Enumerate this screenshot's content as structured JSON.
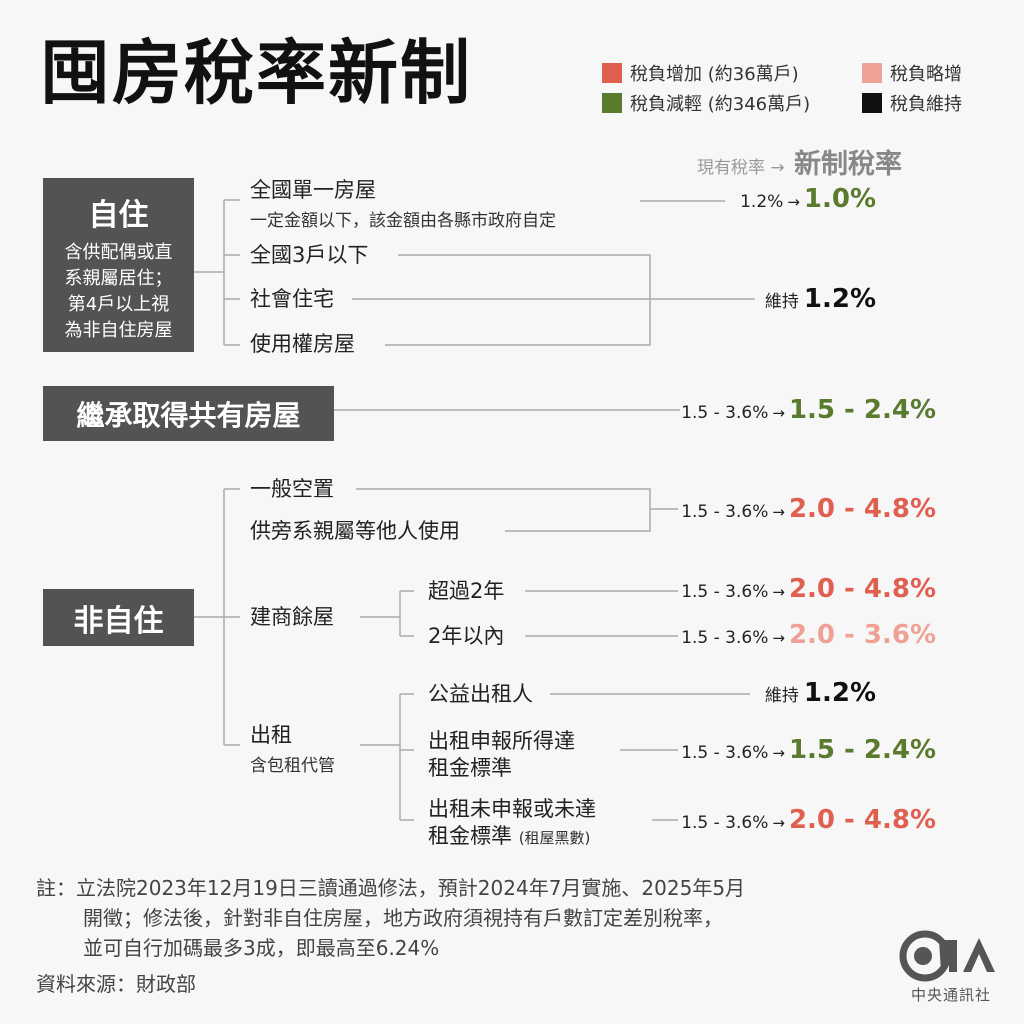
{
  "title": "囤房稅率新制",
  "legend": [
    {
      "label": "稅負增加 (約36萬戶)",
      "color": "#e0604f"
    },
    {
      "label": "稅負略增",
      "color": "#f0a195"
    },
    {
      "label": "稅負減輕 (約346萬戶)",
      "color": "#5a7a2e"
    },
    {
      "label": "稅負維持",
      "color": "#111111"
    }
  ],
  "header": {
    "current": "現有稅率",
    "arrow": "→",
    "new": "新制稅率"
  },
  "colors": {
    "increase": "#e0604f",
    "slight": "#f0a195",
    "decrease": "#5a7a2e",
    "maintain": "#111111"
  },
  "self_use": {
    "title": "自住",
    "desc": [
      "含供配偶或直",
      "系親屬居住；",
      "第4戶以上視",
      "為非自住房屋"
    ],
    "items": {
      "single": {
        "label": "全國單一房屋",
        "sub": "一定金額以下，該金額由各縣市政府自定",
        "current": "1.2%",
        "new": "1.0%"
      },
      "three": {
        "label": "全國3戶以下"
      },
      "social": {
        "label": "社會住宅"
      },
      "usage": {
        "label": "使用權房屋"
      },
      "group_rate": {
        "current": "維持",
        "new": "1.2%"
      }
    }
  },
  "inherit": {
    "title": "繼承取得共有房屋",
    "current": "1.5 - 3.6%",
    "new": "1.5 - 2.4%"
  },
  "non_self": {
    "title": "非自住",
    "vacant": {
      "label": "一般空置"
    },
    "relatives": {
      "label": "供旁系親屬等他人使用"
    },
    "vacant_rate": {
      "current": "1.5 - 3.6%",
      "new": "2.0 - 4.8%"
    },
    "builder": {
      "label": "建商餘屋",
      "over2": {
        "label": "超過2年",
        "current": "1.5 - 3.6%",
        "new": "2.0 - 4.8%"
      },
      "within2": {
        "label": "2年以內",
        "current": "1.5 - 3.6%",
        "new": "2.0 - 3.6%"
      }
    },
    "rent": {
      "label": "出租",
      "sub": "含包租代管",
      "charity": {
        "label": "公益出租人",
        "current": "維持",
        "new": "1.2%"
      },
      "reported": {
        "label1": "出租申報所得達",
        "label2": "租金標準",
        "current": "1.5 - 3.6%",
        "new": "1.5 - 2.4%"
      },
      "unreported": {
        "label1": "出租未申報或未達",
        "label2": "租金標準",
        "label2_small": "(租屋黑數)",
        "current": "1.5 - 3.6%",
        "new": "2.0 - 4.8%"
      }
    }
  },
  "note": {
    "prefix": "註：",
    "lines": [
      "立法院2023年12月19日三讀通過修法，預計2024年7月實施、2025年5月",
      "開徵；修法後，針對非自住房屋，地方政府須視持有戶數訂定差別稅率，",
      "並可自行加碼最多3成，即最高至6.24%"
    ]
  },
  "source": "資料來源：財政部",
  "logo": {
    "mark": "CNA",
    "name": "中央通訊社"
  }
}
